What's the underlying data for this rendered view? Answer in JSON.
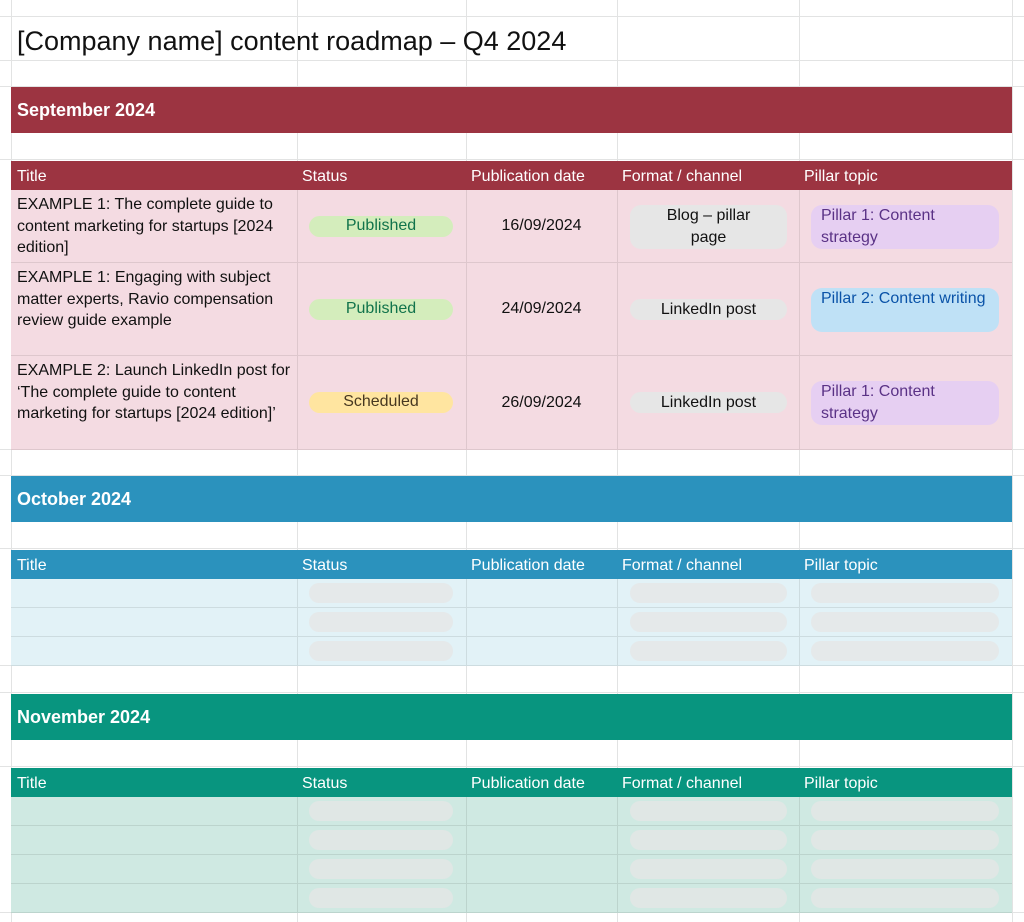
{
  "page_title": "[Company name] content roadmap – Q4 2024",
  "columns": [
    "Title",
    "Status",
    "Publication date",
    "Format / channel",
    "Pillar topic"
  ],
  "colors": {
    "september": "#9c3441",
    "september_row": "#f4dbe2",
    "october": "#2b92bd",
    "october_row": "#e2f2f7",
    "november": "#08957f",
    "november_row": "#cfe9e2"
  },
  "months": [
    {
      "name": "September 2024",
      "rows": [
        {
          "title": "EXAMPLE 1: The complete guide to content marketing for startups [2024 edition]",
          "status": "Published",
          "date": "16/09/2024",
          "format": "Blog – pillar page",
          "pillar": "Pillar 1: Content strategy"
        },
        {
          "title": "EXAMPLE 1: Engaging with subject matter experts, Ravio compensation review guide example",
          "status": "Published",
          "date": "24/09/2024",
          "format": "LinkedIn post",
          "pillar": "Pillar 2: Content writing"
        },
        {
          "title": "EXAMPLE 2: Launch LinkedIn post for ‘The complete guide to content marketing for startups [2024 edition]’",
          "status": "Scheduled",
          "date": "26/09/2024",
          "format": "LinkedIn post",
          "pillar": "Pillar 1: Content strategy"
        }
      ]
    },
    {
      "name": "October 2024",
      "empty_rows": 3
    },
    {
      "name": "November 2024",
      "empty_rows": 4
    }
  ]
}
